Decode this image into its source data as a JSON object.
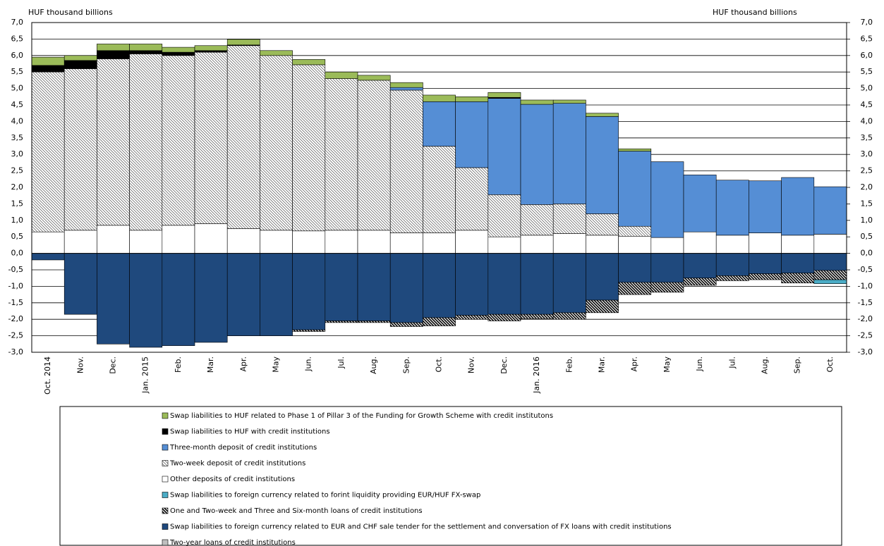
{
  "chart_data": {
    "type": "stacked_bar",
    "y_label": "HUF thousand billions",
    "y2_label": "HUF thousand billions",
    "categories": [
      "Oct. 2014",
      "Nov.",
      "Dec.",
      "Jan. 2015",
      "Feb.",
      "Mar.",
      "Apr.",
      "May",
      "Jun.",
      "Jul.",
      "Aug.",
      "Sep.",
      "Oct.",
      "Nov.",
      "Dec.",
      "Jan. 2016",
      "Feb.",
      "Mar.",
      "Apr.",
      "May",
      "Jun.",
      "Jul.",
      "Aug.",
      "Sep.",
      "Oct."
    ],
    "ylim": [
      -3.0,
      7.0
    ],
    "y2lim": [
      -3.0,
      7.0
    ],
    "yticks": [
      {
        "value": -3.0,
        "label": "-3,0"
      },
      {
        "value": -2.5,
        "label": "-2,5"
      },
      {
        "value": -2.0,
        "label": "-2,0"
      },
      {
        "value": -1.5,
        "label": "-1,5"
      },
      {
        "value": -1.0,
        "label": "-1,0"
      },
      {
        "value": -0.5,
        "label": "-0,5"
      },
      {
        "value": 0,
        "label": "0,0"
      },
      {
        "value": 0.5,
        "label": "0,5"
      },
      {
        "value": 1.0,
        "label": "1,0"
      },
      {
        "value": 1.5,
        "label": "1,5"
      },
      {
        "value": 2.0,
        "label": "2,0"
      },
      {
        "value": 2.5,
        "label": "2,5"
      },
      {
        "value": 3.0,
        "label": "3,0"
      },
      {
        "value": 3.5,
        "label": "3,5"
      },
      {
        "value": 4.0,
        "label": "4,0"
      },
      {
        "value": 4.5,
        "label": "4,5"
      },
      {
        "value": 5.0,
        "label": "5,0"
      },
      {
        "value": 5.5,
        "label": "5,5"
      },
      {
        "value": 6.0,
        "label": "6,0"
      },
      {
        "value": 6.5,
        "label": "6,5"
      },
      {
        "value": 7.0,
        "label": "7,0"
      }
    ],
    "y2ticks": [
      {
        "value": -3.0,
        "label": "-3,0"
      },
      {
        "value": -2.5,
        "label": "-2,5"
      },
      {
        "value": -2.0,
        "label": "-2,0"
      },
      {
        "value": -1.5,
        "label": "-1,5"
      },
      {
        "value": -1.0,
        "label": "-1,0"
      },
      {
        "value": -0.5,
        "label": "-0,5"
      },
      {
        "value": 0,
        "label": "0,0"
      },
      {
        "value": 0.5,
        "label": "0,5"
      },
      {
        "value": 1.0,
        "label": "1,0"
      },
      {
        "value": 1.5,
        "label": "1,5"
      },
      {
        "value": 2.0,
        "label": "2,0"
      },
      {
        "value": 2.5,
        "label": "2,5"
      },
      {
        "value": 3.0,
        "label": "3,0"
      },
      {
        "value": 3.5,
        "label": "3,5"
      },
      {
        "value": 4.0,
        "label": "4,0"
      },
      {
        "value": 4.5,
        "label": "4,5"
      },
      {
        "value": 5.0,
        "label": "5,0"
      },
      {
        "value": 5.5,
        "label": "5,5"
      },
      {
        "value": 6.0,
        "label": "6,0"
      },
      {
        "value": 6.5,
        "label": "6,5"
      },
      {
        "value": 7.0,
        "label": "7,0"
      }
    ],
    "grid": true,
    "series": [
      {
        "name": "Swap liabilities to HUF related to Phase 1 of Pillar 3 of the Funding for Growth Scheme with credit institutons",
        "color": "#9bbb59",
        "hatch": false,
        "values": [
          0.25,
          0.15,
          0.2,
          0.2,
          0.15,
          0.15,
          0.17,
          0.15,
          0.16,
          0.2,
          0.15,
          0.15,
          0.2,
          0.15,
          0.15,
          0.13,
          0.1,
          0.1,
          0.07,
          0,
          0,
          0,
          0,
          0,
          0
        ]
      },
      {
        "name": "Swap liabilities to HUF with credit institutions",
        "color": "#000000",
        "hatch": false,
        "values": [
          0.2,
          0.25,
          0.25,
          0.1,
          0.1,
          0.05,
          0.02,
          0,
          0,
          0,
          0,
          0,
          0,
          0,
          0.03,
          0,
          0,
          0,
          0,
          0,
          0,
          0,
          0,
          0,
          0
        ]
      },
      {
        "name": "Three-month deposit of credit institutions",
        "color": "#558ed5",
        "hatch": false,
        "values": [
          0,
          0,
          0,
          0,
          0,
          0,
          0,
          0,
          0,
          0,
          0,
          0.08,
          1.35,
          2.0,
          2.92,
          3.04,
          3.05,
          2.95,
          2.28,
          2.3,
          1.73,
          1.67,
          1.58,
          1.75,
          1.44
        ]
      },
      {
        "name": "Two-week deposit of credit institutions",
        "color": "#ffffff",
        "hatch": true,
        "values": [
          4.85,
          4.9,
          5.05,
          5.35,
          5.15,
          5.2,
          5.55,
          5.3,
          5.04,
          4.6,
          4.55,
          4.33,
          2.63,
          1.9,
          1.28,
          0.93,
          0.9,
          0.65,
          0.3,
          0,
          0,
          0,
          0,
          0,
          0
        ]
      },
      {
        "name": "Other deposits of credit institutions",
        "color": "#ffffff",
        "hatch": false,
        "values": [
          0.65,
          0.7,
          0.85,
          0.7,
          0.85,
          0.9,
          0.75,
          0.7,
          0.68,
          0.7,
          0.7,
          0.62,
          0.62,
          0.7,
          0.5,
          0.55,
          0.6,
          0.55,
          0.52,
          0.48,
          0.65,
          0.55,
          0.62,
          0.55,
          0.58
        ]
      },
      {
        "name": "Swap liabilities to foreign currency related to forint liquidity providing EUR/HUF FX-swap",
        "color": "#4bacc6",
        "hatch": false,
        "values": [
          0,
          0,
          0,
          0,
          0,
          0,
          0,
          0,
          0,
          0,
          0,
          0,
          0,
          0,
          0,
          0,
          0,
          0,
          0,
          0,
          0,
          0,
          0,
          0,
          -0.12
        ]
      },
      {
        "name": "One and Two-week and Three and Six-month loans of credit institutions",
        "color": "#000000",
        "hatch": true,
        "values": [
          0,
          0,
          0,
          0,
          0,
          0,
          0,
          0,
          -0.05,
          -0.05,
          -0.05,
          -0.12,
          -0.25,
          -0.12,
          -0.2,
          -0.13,
          -0.2,
          -0.38,
          -0.37,
          -0.3,
          -0.22,
          -0.15,
          -0.18,
          -0.3,
          -0.28
        ]
      },
      {
        "name": "Swap liabilities to foreign currency related to EUR and CHF sale tender for the settlement and conversation of FX loans with credit institutions",
        "color": "#1f497d",
        "hatch": false,
        "values": [
          -0.2,
          -1.85,
          -2.75,
          -2.85,
          -2.8,
          -2.7,
          -2.5,
          -2.5,
          -2.32,
          -2.05,
          -2.05,
          -2.1,
          -1.95,
          -1.88,
          -1.85,
          -1.85,
          -1.8,
          -1.42,
          -0.88,
          -0.88,
          -0.75,
          -0.68,
          -0.62,
          -0.6,
          -0.52
        ]
      },
      {
        "name": "Two-year loans of credit institutions",
        "color": "#bfbfbf",
        "hatch": false,
        "values": [
          0,
          0,
          0,
          0,
          0,
          0,
          0,
          0,
          0,
          0,
          0,
          0,
          0,
          0,
          0,
          0,
          0,
          0,
          0,
          0,
          0,
          0,
          0,
          0,
          0
        ]
      }
    ]
  }
}
